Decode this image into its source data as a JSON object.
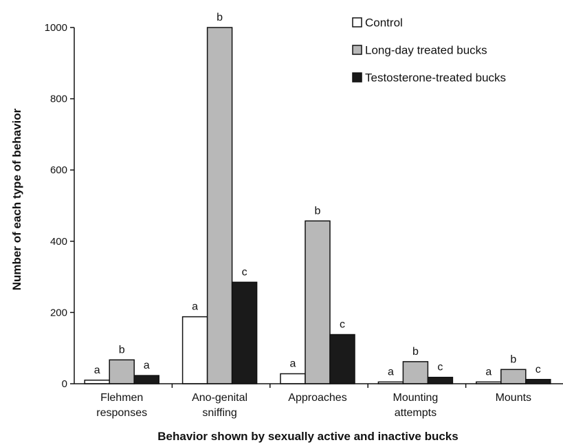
{
  "chart_data": {
    "type": "bar",
    "title": "",
    "xlabel": "Behavior shown by sexually active and inactive bucks",
    "ylabel": "Number of each type of behavior",
    "ylim": [
      0,
      1000
    ],
    "yticks": [
      0,
      200,
      400,
      600,
      800,
      1000
    ],
    "grid": false,
    "legend_position": "top-right",
    "categories": [
      [
        "Flehmen",
        "responses"
      ],
      [
        "Ano-genital",
        "sniffing"
      ],
      [
        "Approaches"
      ],
      [
        "Mounting",
        "attempts"
      ],
      [
        "Mounts"
      ]
    ],
    "series": [
      {
        "name": "Control",
        "color": "#ffffff",
        "values": [
          10,
          188,
          28,
          5,
          5
        ],
        "labels": [
          "a",
          "a",
          "a",
          "a",
          "a"
        ]
      },
      {
        "name": "Long-day treated bucks",
        "color": "#b8b8b8",
        "values": [
          67,
          1000,
          457,
          62,
          40
        ],
        "labels": [
          "b",
          "b",
          "b",
          "b",
          "b"
        ]
      },
      {
        "name": "Testosterone-treated bucks",
        "color": "#1a1a1a",
        "values": [
          23,
          285,
          138,
          18,
          12
        ],
        "labels": [
          "a",
          "c",
          "c",
          "c",
          "c"
        ]
      }
    ]
  }
}
